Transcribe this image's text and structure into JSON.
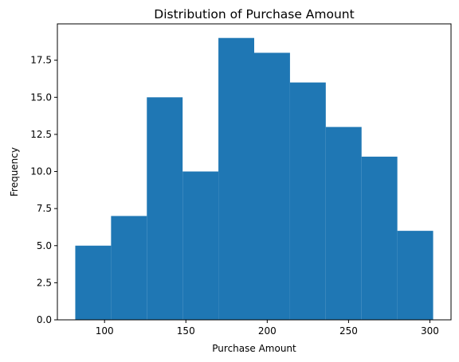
{
  "chart_data": {
    "type": "histogram",
    "title": "Distribution of Purchase Amount",
    "xlabel": "Purchase Amount",
    "ylabel": "Frequency",
    "bin_edges": [
      82,
      104,
      126,
      148,
      170,
      192,
      214,
      236,
      258,
      280,
      302
    ],
    "frequencies": [
      5,
      7,
      15,
      10,
      19,
      18,
      16,
      13,
      11,
      6
    ],
    "xlim": [
      71,
      313
    ],
    "ylim": [
      0,
      19.95
    ],
    "xticks": [
      100,
      150,
      200,
      250,
      300
    ],
    "yticks": [
      0.0,
      2.5,
      5.0,
      7.5,
      10.0,
      12.5,
      15.0,
      17.5
    ],
    "xtick_labels": [
      "100",
      "150",
      "200",
      "250",
      "300"
    ],
    "ytick_labels": [
      "0.0",
      "2.5",
      "5.0",
      "7.5",
      "10.0",
      "12.5",
      "15.0",
      "17.5"
    ],
    "bar_color": "#1f77b4",
    "grid": false,
    "legend": "none"
  }
}
